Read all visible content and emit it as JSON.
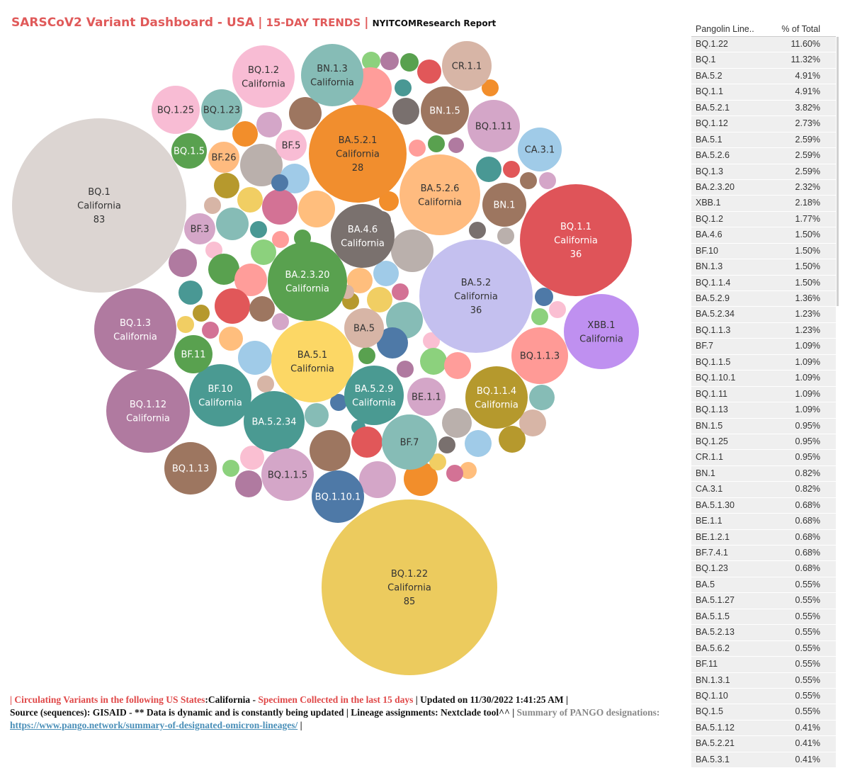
{
  "header": {
    "title": "SARSCoV2 Variant Dashboard - USA",
    "sep1": "|",
    "subtitle": "15-DAY TRENDS",
    "sep2": "|",
    "report": "NYITCOMResearch Report"
  },
  "table": {
    "col1": "Pangolin Line..",
    "col2": "% of Total",
    "rows": [
      {
        "lineage": "BQ.1.22",
        "pct": "11.60%"
      },
      {
        "lineage": "BQ.1",
        "pct": "11.32%"
      },
      {
        "lineage": "BA.5.2",
        "pct": "4.91%"
      },
      {
        "lineage": "BQ.1.1",
        "pct": "4.91%"
      },
      {
        "lineage": "BA.5.2.1",
        "pct": "3.82%"
      },
      {
        "lineage": "BQ.1.12",
        "pct": "2.73%"
      },
      {
        "lineage": "BA.5.1",
        "pct": "2.59%"
      },
      {
        "lineage": "BA.5.2.6",
        "pct": "2.59%"
      },
      {
        "lineage": "BQ.1.3",
        "pct": "2.59%"
      },
      {
        "lineage": "BA.2.3.20",
        "pct": "2.32%"
      },
      {
        "lineage": "XBB.1",
        "pct": "2.18%"
      },
      {
        "lineage": "BQ.1.2",
        "pct": "1.77%"
      },
      {
        "lineage": "BA.4.6",
        "pct": "1.50%"
      },
      {
        "lineage": "BF.10",
        "pct": "1.50%"
      },
      {
        "lineage": "BN.1.3",
        "pct": "1.50%"
      },
      {
        "lineage": "BQ.1.1.4",
        "pct": "1.50%"
      },
      {
        "lineage": "BA.5.2.9",
        "pct": "1.36%"
      },
      {
        "lineage": "BA.5.2.34",
        "pct": "1.23%"
      },
      {
        "lineage": "BQ.1.1.3",
        "pct": "1.23%"
      },
      {
        "lineage": "BF.7",
        "pct": "1.09%"
      },
      {
        "lineage": "BQ.1.1.5",
        "pct": "1.09%"
      },
      {
        "lineage": "BQ.1.10.1",
        "pct": "1.09%"
      },
      {
        "lineage": "BQ.1.11",
        "pct": "1.09%"
      },
      {
        "lineage": "BQ.1.13",
        "pct": "1.09%"
      },
      {
        "lineage": "BN.1.5",
        "pct": "0.95%"
      },
      {
        "lineage": "BQ.1.25",
        "pct": "0.95%"
      },
      {
        "lineage": "CR.1.1",
        "pct": "0.95%"
      },
      {
        "lineage": "BN.1",
        "pct": "0.82%"
      },
      {
        "lineage": "CA.3.1",
        "pct": "0.82%"
      },
      {
        "lineage": "BA.5.1.30",
        "pct": "0.68%"
      },
      {
        "lineage": "BE.1.1",
        "pct": "0.68%"
      },
      {
        "lineage": "BE.1.2.1",
        "pct": "0.68%"
      },
      {
        "lineage": "BF.7.4.1",
        "pct": "0.68%"
      },
      {
        "lineage": "BQ.1.23",
        "pct": "0.68%"
      },
      {
        "lineage": "BA.5",
        "pct": "0.55%"
      },
      {
        "lineage": "BA.5.1.27",
        "pct": "0.55%"
      },
      {
        "lineage": "BA.5.1.5",
        "pct": "0.55%"
      },
      {
        "lineage": "BA.5.2.13",
        "pct": "0.55%"
      },
      {
        "lineage": "BA.5.6.2",
        "pct": "0.55%"
      },
      {
        "lineage": "BF.11",
        "pct": "0.55%"
      },
      {
        "lineage": "BN.1.3.1",
        "pct": "0.55%"
      },
      {
        "lineage": "BQ.1.10",
        "pct": "0.55%"
      },
      {
        "lineage": "BQ.1.5",
        "pct": "0.55%"
      },
      {
        "lineage": "BA.5.1.12",
        "pct": "0.41%"
      },
      {
        "lineage": "BA.5.2.21",
        "pct": "0.41%"
      },
      {
        "lineage": "BA.5.3.1",
        "pct": "0.41%"
      }
    ]
  },
  "footer": {
    "l1_a": "| Circulating Variants in the following US States",
    "l1_b": ":California - ",
    "l1_c": "Specimen Collected in the last 15 days",
    "l1_d": " | Updated on 11/30/2022 1:41:25 AM |",
    "l2_a": "Source (sequences): GISAID - ** Data is dynamic and is constantly being updated | Lineage assignments: Nextclade tool^^ | ",
    "l2_b": "Summary of PANGO designations:",
    "l3_link": "https://www.pango.network/summary-of-designated-omicron-lineages/",
    "l3_end": " |"
  },
  "chart_data": {
    "type": "bubble",
    "state": "California",
    "bubbles": [
      {
        "lineage": "BQ.1.22",
        "state": "California",
        "count": "85",
        "color": "#eccb5e"
      },
      {
        "lineage": "BQ.1",
        "state": "California",
        "count": "83",
        "color": "#dcd5d2"
      },
      {
        "lineage": "BQ.1.1",
        "state": "California",
        "count": "36",
        "color": "#df5459"
      },
      {
        "lineage": "BA.5.2",
        "state": "California",
        "count": "36",
        "color": "#c4c0ef"
      },
      {
        "lineage": "BA.5.2.1",
        "state": "California",
        "count": "28",
        "color": "#f18e2e"
      },
      {
        "lineage": "BQ.1.12",
        "state": "California",
        "count": "",
        "color": "#b07aa0"
      },
      {
        "lineage": "BQ.1.3",
        "state": "California",
        "count": "",
        "color": "#b07aa0"
      },
      {
        "lineage": "BA.5.1",
        "state": "California",
        "count": "",
        "color": "#fcd765"
      },
      {
        "lineage": "BA.5.2.6",
        "state": "California",
        "count": "",
        "color": "#ffbb7f"
      },
      {
        "lineage": "BA.2.3.20",
        "state": "California",
        "count": "",
        "color": "#59a14f"
      },
      {
        "lineage": "XBB.1",
        "state": "California",
        "count": "",
        "color": "#bf90f0"
      },
      {
        "lineage": "BQ.1.2",
        "state": "California",
        "count": "",
        "color": "#f8bcd4"
      },
      {
        "lineage": "BA.4.6",
        "state": "California",
        "count": "",
        "color": "#7a716e"
      },
      {
        "lineage": "BF.10",
        "state": "California",
        "count": "",
        "color": "#4a9a92"
      },
      {
        "lineage": "BN.1.3",
        "state": "California",
        "count": "",
        "color": "#86bcb6"
      },
      {
        "lineage": "BQ.1.1.4",
        "state": "California",
        "count": "",
        "color": "#b5992d"
      },
      {
        "lineage": "BA.5.2.9",
        "state": "California",
        "count": "",
        "color": "#4a9a92"
      },
      {
        "lineage": "BA.5.2.34",
        "state": "",
        "count": "",
        "color": "#4a9a92"
      },
      {
        "lineage": "BQ.1.1.3",
        "state": "",
        "count": "",
        "color": "#ff9a96"
      },
      {
        "lineage": "BF.7",
        "state": "",
        "count": "",
        "color": "#86bcb6"
      },
      {
        "lineage": "BQ.1.1.5",
        "state": "",
        "count": "",
        "color": "#d4a6c8"
      },
      {
        "lineage": "BQ.1.10.1",
        "state": "",
        "count": "",
        "color": "#4e79a7"
      },
      {
        "lineage": "BQ.1.11",
        "state": "",
        "count": "",
        "color": "#d4a6c8"
      },
      {
        "lineage": "BQ.1.13",
        "state": "",
        "count": "",
        "color": "#9d7660"
      },
      {
        "lineage": "BN.1.5",
        "state": "",
        "count": "",
        "color": "#9d7660"
      },
      {
        "lineage": "BQ.1.25",
        "state": "",
        "count": "",
        "color": "#f8bcd4"
      },
      {
        "lineage": "CR.1.1",
        "state": "",
        "count": "",
        "color": "#d7b5a6"
      },
      {
        "lineage": "BN.1",
        "state": "",
        "count": "",
        "color": "#9d7660"
      },
      {
        "lineage": "CA.3.1",
        "state": "",
        "count": "",
        "color": "#a0cbe8"
      },
      {
        "lineage": "BE.1.1",
        "state": "",
        "count": "",
        "color": "#d4a6c8"
      },
      {
        "lineage": "BQ.1.23",
        "state": "",
        "count": "",
        "color": "#86bcb6"
      },
      {
        "lineage": "BA.5",
        "state": "",
        "count": "",
        "color": "#d7b5a6"
      },
      {
        "lineage": "BF.11",
        "state": "",
        "count": "",
        "color": "#59a14f"
      },
      {
        "lineage": "BQ.1.5",
        "state": "",
        "count": "",
        "color": "#59a14f"
      },
      {
        "lineage": "BF.26",
        "state": "",
        "count": "",
        "color": "#ffbb7f"
      },
      {
        "lineage": "BF.5",
        "state": "",
        "count": "",
        "color": "#f8bcd4"
      },
      {
        "lineage": "BF.3",
        "state": "",
        "count": "",
        "color": "#d4a6c8"
      }
    ],
    "unlabeled_colors": [
      "#8cd17d",
      "#b07aa0",
      "#59a14f",
      "#ff9d9a",
      "#499894",
      "#e15759",
      "#9d7660",
      "#d4a6c8",
      "#f28e2b",
      "#79706e",
      "#bab0ac",
      "#a0cbe8",
      "#ffbe7d",
      "#d37295",
      "#f1ce63",
      "#b6992d",
      "#d7b5a6",
      "#86bcb6",
      "#4e79a7",
      "#fabfd2"
    ]
  }
}
